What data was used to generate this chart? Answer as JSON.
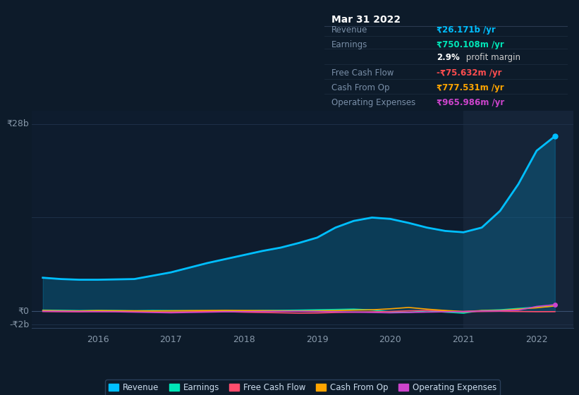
{
  "bg_color": "#0d1b2a",
  "plot_bg_color": "#0e1c2e",
  "highlight_bg": "#152438",
  "grid_color": "#1e3048",
  "ylim": [
    -2500000000.0,
    30000000000.0
  ],
  "xlim_start": 2015.1,
  "xlim_end": 2022.5,
  "highlight_x_start": 2021.0,
  "highlight_x_end": 2022.5,
  "revenue_color": "#00bfff",
  "earnings_color": "#00e6b8",
  "fcf_color": "#ff4d6d",
  "cashfromop_color": "#ffa500",
  "opex_color": "#cc44cc",
  "revenue_data_x": [
    2015.25,
    2015.5,
    2015.75,
    2016.0,
    2016.25,
    2016.5,
    2016.75,
    2017.0,
    2017.25,
    2017.5,
    2017.75,
    2018.0,
    2018.25,
    2018.5,
    2018.75,
    2019.0,
    2019.25,
    2019.5,
    2019.75,
    2020.0,
    2020.25,
    2020.5,
    2020.75,
    2021.0,
    2021.25,
    2021.5,
    2021.75,
    2022.0,
    2022.25
  ],
  "revenue_data_y": [
    5000000000.0,
    4800000000.0,
    4700000000.0,
    4700000000.0,
    4750000000.0,
    4800000000.0,
    5300000000.0,
    5800000000.0,
    6500000000.0,
    7200000000.0,
    7800000000.0,
    8400000000.0,
    9000000000.0,
    9500000000.0,
    10200000000.0,
    11000000000.0,
    12500000000.0,
    13500000000.0,
    14000000000.0,
    13800000000.0,
    13200000000.0,
    12500000000.0,
    12000000000.0,
    11800000000.0,
    12500000000.0,
    15000000000.0,
    19000000000.0,
    24000000000.0,
    26171000000.0
  ],
  "earnings_data_x": [
    2015.25,
    2015.5,
    2015.75,
    2016.0,
    2016.25,
    2016.5,
    2016.75,
    2017.0,
    2017.25,
    2017.5,
    2017.75,
    2018.0,
    2018.25,
    2018.5,
    2018.75,
    2019.0,
    2019.25,
    2019.5,
    2019.75,
    2020.0,
    2020.25,
    2020.5,
    2020.75,
    2021.0,
    2021.25,
    2021.5,
    2021.75,
    2022.0,
    2022.25
  ],
  "earnings_data_y": [
    150000000.0,
    120000000.0,
    80000000.0,
    100000000.0,
    90000000.0,
    50000000.0,
    100000000.0,
    80000000.0,
    60000000.0,
    40000000.0,
    20000000.0,
    50000000.0,
    100000000.0,
    120000000.0,
    150000000.0,
    200000000.0,
    250000000.0,
    300000000.0,
    180000000.0,
    -100000000.0,
    -200000000.0,
    50000000.0,
    -150000000.0,
    -300000000.0,
    100000000.0,
    200000000.0,
    400000000.0,
    600000000.0,
    750108000.0
  ],
  "fcf_data_x": [
    2015.25,
    2015.5,
    2015.75,
    2016.0,
    2016.25,
    2016.5,
    2016.75,
    2017.0,
    2017.25,
    2017.5,
    2017.75,
    2018.0,
    2018.25,
    2018.5,
    2018.75,
    2019.0,
    2019.25,
    2019.5,
    2019.75,
    2020.0,
    2020.25,
    2020.5,
    2020.75,
    2021.0,
    2021.25,
    2021.5,
    2021.75,
    2022.0,
    2022.25
  ],
  "fcf_data_y": [
    -50000000.0,
    -80000000.0,
    -100000000.0,
    -50000000.0,
    -30000000.0,
    -80000000.0,
    -120000000.0,
    -150000000.0,
    -100000000.0,
    -50000000.0,
    -80000000.0,
    -150000000.0,
    -200000000.0,
    -250000000.0,
    -300000000.0,
    -280000000.0,
    -200000000.0,
    -150000000.0,
    -100000000.0,
    -50000000.0,
    50000000.0,
    100000000.0,
    50000000.0,
    -100000000.0,
    -50000000.0,
    -20000000.0,
    -50000000.0,
    -80000000.0,
    -75632000.0
  ],
  "cashfromop_data_x": [
    2015.25,
    2015.5,
    2015.75,
    2016.0,
    2016.25,
    2016.5,
    2016.75,
    2017.0,
    2017.25,
    2017.5,
    2017.75,
    2018.0,
    2018.25,
    2018.5,
    2018.75,
    2019.0,
    2019.25,
    2019.5,
    2019.75,
    2020.0,
    2020.25,
    2020.5,
    2020.75,
    2021.0,
    2021.25,
    2021.5,
    2021.75,
    2022.0,
    2022.25
  ],
  "cashfromop_data_y": [
    100000000.0,
    50000000.0,
    30000000.0,
    80000000.0,
    60000000.0,
    50000000.0,
    30000000.0,
    50000000.0,
    80000000.0,
    100000000.0,
    120000000.0,
    100000000.0,
    80000000.0,
    50000000.0,
    30000000.0,
    50000000.0,
    80000000.0,
    150000000.0,
    200000000.0,
    350000000.0,
    550000000.0,
    300000000.0,
    100000000.0,
    -50000000.0,
    80000000.0,
    100000000.0,
    300000000.0,
    500000000.0,
    777531000.0
  ],
  "opex_data_x": [
    2015.25,
    2015.5,
    2015.75,
    2016.0,
    2016.25,
    2016.5,
    2016.75,
    2017.0,
    2017.25,
    2017.5,
    2017.75,
    2018.0,
    2018.25,
    2018.5,
    2018.75,
    2019.0,
    2019.25,
    2019.5,
    2019.75,
    2020.0,
    2020.25,
    2020.5,
    2020.75,
    2021.0,
    2021.25,
    2021.5,
    2021.75,
    2022.0,
    2022.25
  ],
  "opex_data_y": [
    -20000000.0,
    -30000000.0,
    -50000000.0,
    -80000000.0,
    -100000000.0,
    -150000000.0,
    -200000000.0,
    -250000000.0,
    -200000000.0,
    -150000000.0,
    -100000000.0,
    -80000000.0,
    -50000000.0,
    -30000000.0,
    -20000000.0,
    -50000000.0,
    -100000000.0,
    -150000000.0,
    -200000000.0,
    -250000000.0,
    -200000000.0,
    -150000000.0,
    -100000000.0,
    -50000000.0,
    20000000.0,
    50000000.0,
    150000000.0,
    700000000.0,
    965986000.0
  ],
  "legend_items": [
    {
      "label": "Revenue",
      "color": "#00bfff"
    },
    {
      "label": "Earnings",
      "color": "#00e6b8"
    },
    {
      "label": "Free Cash Flow",
      "color": "#ff4d6d"
    },
    {
      "label": "Cash From Op",
      "color": "#ffa500"
    },
    {
      "label": "Operating Expenses",
      "color": "#cc44cc"
    }
  ],
  "info_box_title": "Mar 31 2022",
  "info_box_bg": "#0a0e1a",
  "info_box_border": "#2a3a50",
  "info_rows": [
    {
      "label": "Revenue",
      "value": "₹26.171b /yr",
      "value_color": "#00bfff",
      "label_color": "#7a8fa8"
    },
    {
      "label": "Earnings",
      "value": "₹750.108m /yr",
      "value_color": "#00e6b8",
      "label_color": "#7a8fa8"
    },
    {
      "label": "",
      "value": "profit margin",
      "value_color": "#cccccc",
      "label_color": "#cccccc",
      "bold_prefix": "2.9%"
    },
    {
      "label": "Free Cash Flow",
      "value": "-₹75.632m /yr",
      "value_color": "#ff4d4f",
      "label_color": "#7a8fa8"
    },
    {
      "label": "Cash From Op",
      "value": "₹777.531m /yr",
      "value_color": "#ffa500",
      "label_color": "#7a8fa8"
    },
    {
      "label": "Operating Expenses",
      "value": "₹965.986m /yr",
      "value_color": "#cc44cc",
      "label_color": "#7a8fa8"
    }
  ]
}
